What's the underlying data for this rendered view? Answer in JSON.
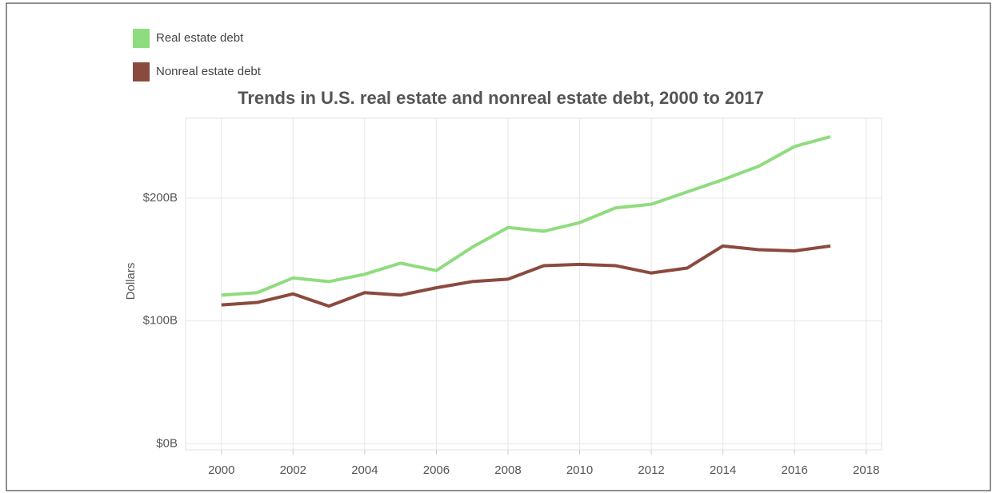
{
  "chart_data": {
    "type": "line",
    "title": "Trends in U.S. real estate and nonreal estate debt, 2000 to 2017",
    "y_label": "Dollars",
    "x": [
      2000,
      2001,
      2002,
      2003,
      2004,
      2005,
      2006,
      2007,
      2008,
      2009,
      2010,
      2011,
      2012,
      2013,
      2014,
      2015,
      2016,
      2017
    ],
    "series": [
      {
        "name": "Real estate debt",
        "color": "#8fdc7e",
        "values": [
          121,
          123,
          135,
          132,
          138,
          147,
          141,
          160,
          176,
          173,
          180,
          192,
          195,
          205,
          215,
          226,
          242,
          250
        ]
      },
      {
        "name": "Nonreal estate debt",
        "color": "#8b4a3f",
        "values": [
          113,
          115,
          122,
          112,
          123,
          121,
          127,
          132,
          134,
          145,
          146,
          145,
          139,
          143,
          161,
          158,
          157,
          161
        ]
      }
    ],
    "xlim": [
      1999,
      2018.43
    ],
    "xticks": [
      2000,
      2002,
      2004,
      2006,
      2008,
      2010,
      2012,
      2014,
      2016,
      2018
    ],
    "ylim": [
      -5,
      265
    ],
    "yticks": [
      {
        "value": 0,
        "label": "$0B"
      },
      {
        "value": 100,
        "label": "$100B"
      },
      {
        "value": 200,
        "label": "$200B"
      }
    ],
    "grid": true,
    "legend": "top-left"
  }
}
